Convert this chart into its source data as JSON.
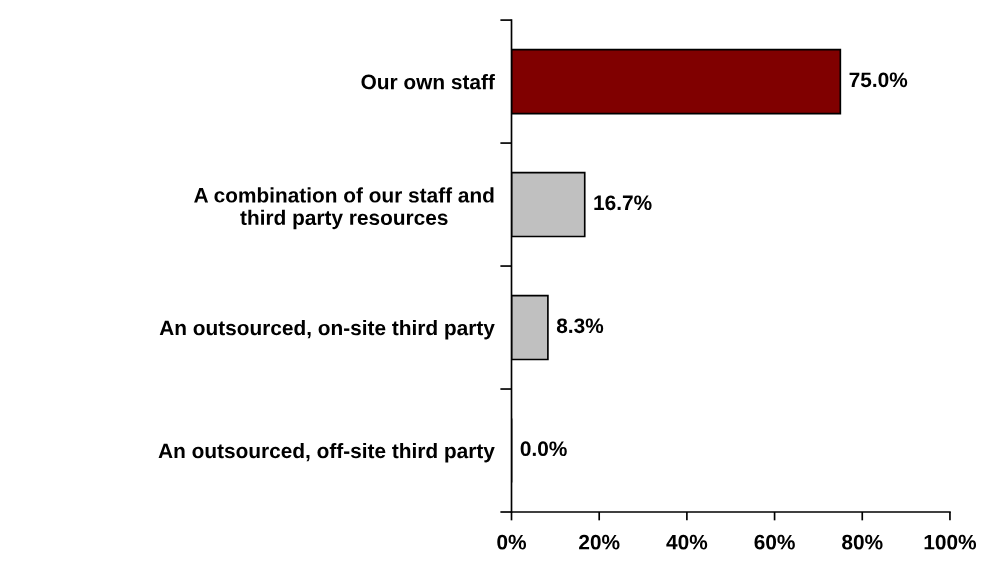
{
  "chart_data": {
    "type": "bar",
    "orientation": "horizontal",
    "categories": [
      "Our own staff",
      "A combination of our staff and\nthird party resources",
      "An outsourced, on-site third party",
      "An outsourced, off-site third party"
    ],
    "values": [
      75.0,
      16.7,
      8.3,
      0.0
    ],
    "colors": [
      "#800000",
      "#c0c0c0",
      "#c0c0c0",
      "#c0c0c0"
    ],
    "value_labels": [
      "75.0%",
      "16.7%",
      "8.3%",
      "0.0%"
    ],
    "xlim": [
      0,
      100
    ],
    "xticks": [
      {
        "value": 0,
        "label": "0%"
      },
      {
        "value": 20,
        "label": "20%"
      },
      {
        "value": 40,
        "label": "40%"
      },
      {
        "value": 60,
        "label": "60%"
      },
      {
        "value": 80,
        "label": "80%"
      },
      {
        "value": 100,
        "label": "100%"
      }
    ],
    "grid": false,
    "legend": false
  }
}
